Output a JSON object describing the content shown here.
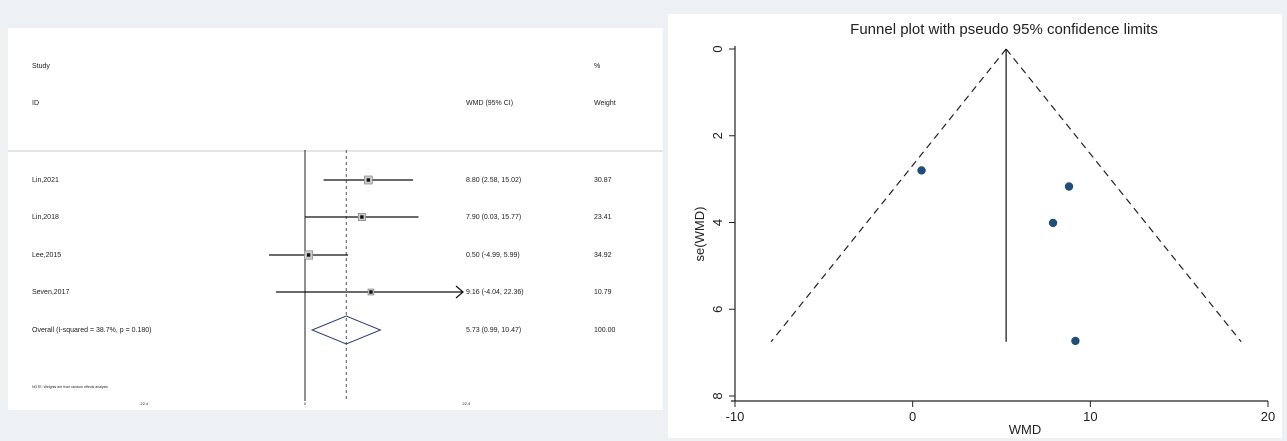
{
  "forest_plot": {
    "header": {
      "study": "Study",
      "id": "ID",
      "effect": "WMD (95% CI)",
      "pct": "%",
      "weight": "Weight"
    },
    "studies": [
      {
        "label": "Lin,2021",
        "est": 8.8,
        "lo": 2.58,
        "hi": 15.02,
        "ci_text": "8.80 (2.58, 15.02)",
        "weight": "30.87",
        "w": 30.87
      },
      {
        "label": "Lin,2018",
        "est": 7.9,
        "lo": 0.03,
        "hi": 15.77,
        "ci_text": "7.90 (0.03, 15.77)",
        "weight": "23.41",
        "w": 23.41
      },
      {
        "label": "Lee,2015",
        "est": 0.5,
        "lo": -4.99,
        "hi": 5.99,
        "ci_text": "0.50 (-4.99, 5.99)",
        "weight": "34.92",
        "w": 34.92
      },
      {
        "label": "Seven,2017",
        "est": 9.16,
        "lo": -4.04,
        "hi": 22.36,
        "ci_text": "9.16 (-4.04, 22.36)",
        "weight": "10.79",
        "w": 10.79,
        "arrow": true
      }
    ],
    "overall": {
      "label": "Overall  (I-squared = 38.7%, p = 0.180)",
      "est": 5.73,
      "lo": 0.99,
      "hi": 10.47,
      "ci_text": "5.73 (0.99, 10.47)",
      "weight": "100.00"
    },
    "note": "NOTE: Weights are from random effects analysis",
    "x_ticks": [
      {
        "value": -22.4,
        "label": "-22.4"
      },
      {
        "value": 0,
        "label": "0"
      },
      {
        "value": 22.4,
        "label": "22.4"
      }
    ]
  },
  "chart_data": {
    "type": "scatter",
    "title": "Funnel plot with pseudo 95% confidence limits",
    "xlabel": "WMD",
    "ylabel": "se(WMD)",
    "xlim": [
      -10,
      20
    ],
    "ylim": [
      0,
      8
    ],
    "y_reversed": true,
    "x_ticks": [
      -10,
      0,
      10,
      20
    ],
    "y_ticks": [
      0,
      2,
      4,
      6,
      8
    ],
    "points": [
      {
        "x": 0.5,
        "y": 2.8
      },
      {
        "x": 8.8,
        "y": 3.17
      },
      {
        "x": 7.9,
        "y": 4.01
      },
      {
        "x": 9.16,
        "y": 6.73
      }
    ],
    "pooled_estimate": 5.26,
    "colors": {
      "point": "#1f4e79",
      "line": "#222222"
    }
  }
}
